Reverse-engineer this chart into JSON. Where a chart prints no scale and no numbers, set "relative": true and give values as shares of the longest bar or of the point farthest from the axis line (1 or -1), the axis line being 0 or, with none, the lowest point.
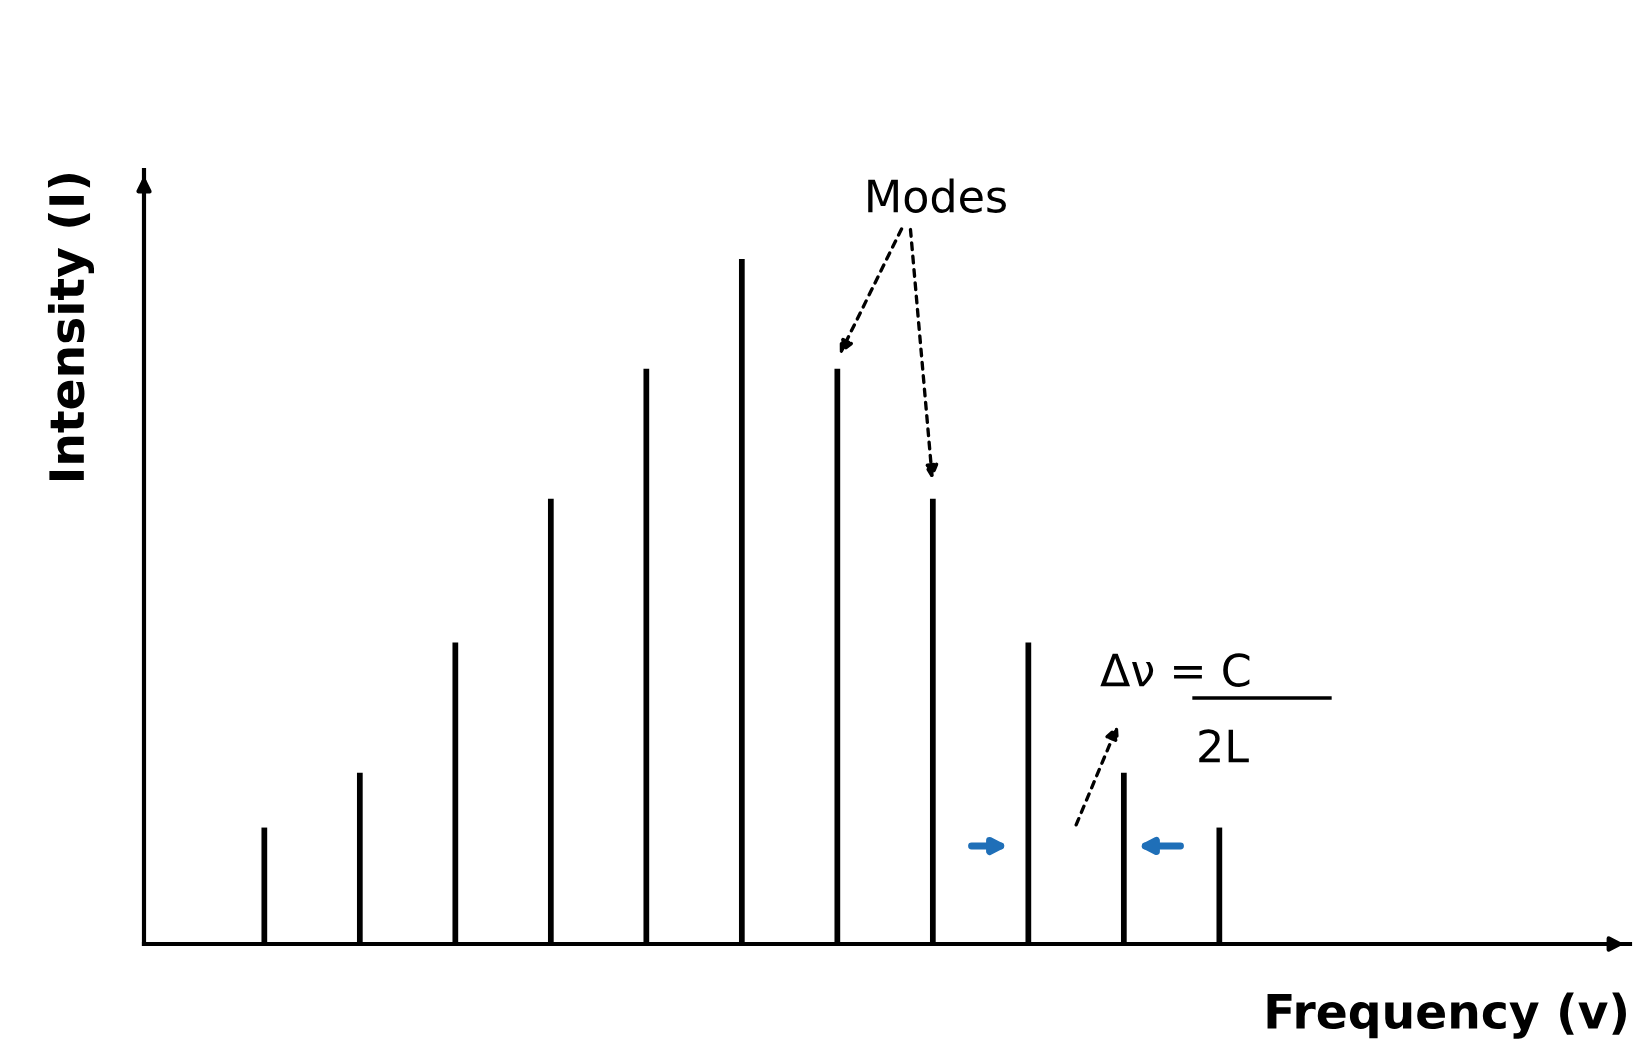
{
  "chart_data": {
    "type": "bar",
    "relative": true,
    "xlabel": "Frequency (v)",
    "ylabel": "Intensity (I)",
    "categories": [
      null,
      null,
      null,
      null,
      null,
      null,
      null,
      null,
      null,
      null,
      null
    ],
    "values": [
      0.17,
      0.25,
      0.44,
      0.65,
      0.84,
      1,
      0.84,
      0.65,
      0.44,
      0.25,
      0.17
    ],
    "color": "#000000",
    "grid": false,
    "legend": false,
    "annotations": [
      "Modes",
      "Δν = C",
      "2L"
    ]
  }
}
